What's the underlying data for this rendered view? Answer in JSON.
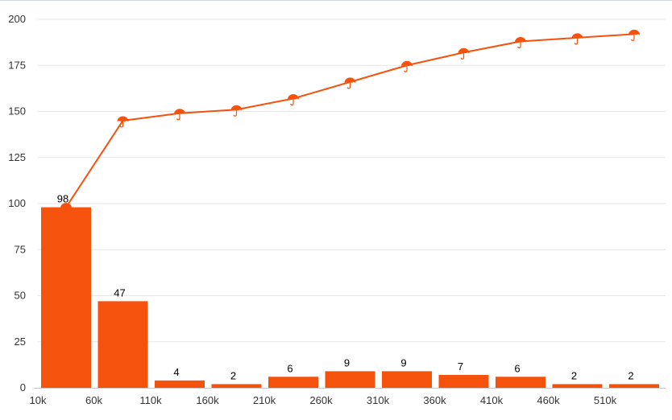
{
  "chart_data": {
    "type": "bar",
    "categories": [
      "10k",
      "60k",
      "110k",
      "160k",
      "210k",
      "260k",
      "310k",
      "360k",
      "410k",
      "460k",
      "510k"
    ],
    "series": [
      {
        "type": "bar",
        "values": [
          98,
          47,
          4,
          2,
          6,
          9,
          9,
          7,
          6,
          2,
          2
        ]
      },
      {
        "type": "line",
        "values": [
          98,
          145,
          149,
          151,
          157,
          166,
          175,
          182,
          188,
          190,
          192
        ]
      }
    ],
    "xlabel": "",
    "ylabel": "",
    "ylim": [
      0,
      200
    ],
    "yticks": [
      "0",
      "25",
      "50",
      "75",
      "100",
      "125",
      "150",
      "175",
      "200"
    ],
    "xticks": [
      "10k",
      "60k",
      "110k",
      "160k",
      "210k",
      "260k",
      "310k",
      "360k",
      "410k",
      "460k",
      "510k"
    ],
    "grid": true,
    "colors": {
      "bar": "#f4520d",
      "line": "#f4520d",
      "marker": "#f4520d"
    },
    "marker_icon": "umbrella-icon"
  }
}
